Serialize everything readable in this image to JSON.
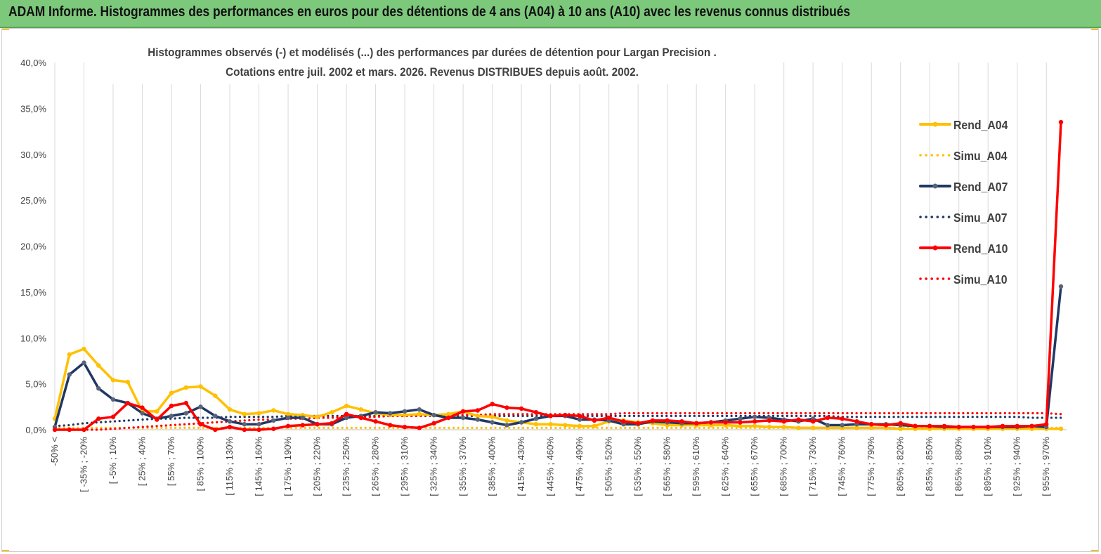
{
  "header": {
    "banner_title": "ADAM Informe. Histogrammes des performances en euros pour des détentions de 4 ans (A04) à 10 ans (A10) avec les revenus connus distribués"
  },
  "chart_data": {
    "type": "line",
    "title": "Histogrammes observés (-) et modélisés (...) des performances par durées de détention pour Largan Precision .",
    "subtitle": "Cotations entre juil. 2002 et mars. 2026. Revenus DISTRIBUES depuis août. 2002.",
    "ylim": [
      0,
      40
    ],
    "yticks": [
      "0,0%",
      "5,0%",
      "10,0%",
      "15,0%",
      "20,0%",
      "25,0%",
      "30,0%",
      "35,0%",
      "40,0%"
    ],
    "grid": "vertical",
    "legend_position": "right",
    "x_tick_labels": [
      "-50% <",
      "[ -35% ; -20%",
      "[ -5% ; 10%",
      "[ 25% ; 40%",
      "[ 55% ; 70%",
      "[ 85% ; 100%",
      "[ 115% ; 130%",
      "[ 145% ; 160%",
      "[ 175% ; 190%",
      "[ 205% ; 220%",
      "[ 235% ; 250%",
      "[ 265% ; 280%",
      "[ 295% ; 310%",
      "[ 325% ; 340%",
      "[ 355% ; 370%",
      "[ 385% ; 400%",
      "[ 415% ; 430%",
      "[ 445% ; 460%",
      "[ 475% ; 490%",
      "[ 505% ; 520%",
      "[ 535% ; 550%",
      "[ 565% ; 580%",
      "[ 595% ; 610%",
      "[ 625% ; 640%",
      "[ 655% ; 670%",
      "[ 685% ; 700%",
      "[ 715% ; 730%",
      "[ 745% ; 760%",
      "[ 775% ; 790%",
      "[ 805% ; 820%",
      "[ 835% ; 850%",
      "[ 865% ; 880%",
      "[ 895% ; 910%",
      "[ 925% ; 940%",
      "[ 955% ; 970%"
    ],
    "series": [
      {
        "name": "Rend_A04",
        "style": "solid",
        "markers": true,
        "color": "#FFC000",
        "values": [
          1.2,
          8.2,
          8.8,
          7.0,
          5.4,
          5.2,
          2.0,
          2.0,
          4.0,
          4.6,
          4.7,
          3.7,
          2.2,
          1.7,
          1.8,
          2.1,
          1.7,
          1.6,
          1.4,
          1.9,
          2.6,
          2.2,
          1.8,
          1.6,
          1.6,
          1.7,
          1.6,
          1.7,
          2.0,
          1.5,
          1.4,
          1.0,
          0.8,
          0.6,
          0.6,
          0.5,
          0.4,
          0.4,
          0.9,
          1.0,
          0.8,
          0.7,
          0.5,
          0.5,
          0.5,
          0.5,
          0.5,
          0.4,
          0.4,
          0.3,
          0.3,
          0.2,
          0.2,
          0.2,
          0.2,
          0.2,
          0.2,
          0.2,
          0.1,
          0.1,
          0.1,
          0.1,
          0.1,
          0.1,
          0.1,
          0.1,
          0.1,
          0.1,
          0.1,
          0.1
        ]
      },
      {
        "name": "Simu_A04",
        "style": "dotted",
        "markers": false,
        "color": "#FFC000",
        "values": [
          0.2,
          0.2,
          0.2,
          0.2,
          0.2,
          0.2,
          0.2,
          0.2,
          0.2,
          0.2,
          0.2,
          0.2,
          0.2,
          0.2,
          0.2,
          0.2,
          0.2,
          0.2,
          0.2,
          0.2,
          0.2,
          0.2,
          0.2,
          0.2,
          0.2,
          0.2,
          0.2,
          0.2,
          0.2,
          0.2,
          0.2,
          0.2,
          0.2,
          0.2,
          0.2,
          0.2,
          0.2,
          0.2,
          0.2,
          0.2,
          0.2,
          0.2,
          0.2,
          0.2,
          0.2,
          0.2,
          0.2,
          0.2,
          0.2,
          0.2,
          0.2,
          0.2,
          0.2,
          0.2,
          0.2,
          0.2,
          0.2,
          0.2,
          0.2,
          0.2,
          0.2,
          0.2,
          0.2,
          0.2,
          0.2,
          0.2,
          0.2,
          0.2,
          0.2,
          0.2
        ]
      },
      {
        "name": "Rend_A07",
        "style": "solid",
        "markers": true,
        "color": "#1F3864",
        "values": [
          0.3,
          6.0,
          7.3,
          4.5,
          3.3,
          2.9,
          1.8,
          1.2,
          1.5,
          1.8,
          2.5,
          1.5,
          0.9,
          0.6,
          0.6,
          1.0,
          1.3,
          1.3,
          0.6,
          0.6,
          1.3,
          1.5,
          1.9,
          1.8,
          2.0,
          2.2,
          1.6,
          1.3,
          1.3,
          1.1,
          0.8,
          0.5,
          0.8,
          1.2,
          1.5,
          1.5,
          1.1,
          1.1,
          1.0,
          0.6,
          0.6,
          0.9,
          0.8,
          0.7,
          0.7,
          0.8,
          1.0,
          1.2,
          1.4,
          1.3,
          1.1,
          0.9,
          1.2,
          0.5,
          0.5,
          0.6,
          0.6,
          0.6,
          0.5,
          0.4,
          0.4,
          0.3,
          0.3,
          0.3,
          0.3,
          0.3,
          0.3,
          0.4,
          0.3,
          15.6
        ]
      },
      {
        "name": "Simu_A07",
        "style": "dotted",
        "markers": false,
        "color": "#1F3864",
        "values": [
          0.4,
          0.5,
          0.7,
          0.8,
          0.9,
          1.0,
          1.1,
          1.2,
          1.2,
          1.3,
          1.3,
          1.3,
          1.4,
          1.4,
          1.4,
          1.4,
          1.5,
          1.5,
          1.5,
          1.5,
          1.5,
          1.5,
          1.5,
          1.5,
          1.5,
          1.5,
          1.5,
          1.5,
          1.5,
          1.5,
          1.5,
          1.5,
          1.5,
          1.5,
          1.5,
          1.5,
          1.5,
          1.5,
          1.5,
          1.5,
          1.5,
          1.5,
          1.5,
          1.5,
          1.5,
          1.5,
          1.5,
          1.5,
          1.5,
          1.5,
          1.5,
          1.5,
          1.5,
          1.5,
          1.4,
          1.4,
          1.4,
          1.4,
          1.4,
          1.4,
          1.4,
          1.4,
          1.4,
          1.4,
          1.4,
          1.4,
          1.4,
          1.3,
          1.3,
          1.3
        ]
      },
      {
        "name": "Rend_A10",
        "style": "solid",
        "markers": true,
        "color": "#FF0000",
        "values": [
          0.0,
          0.0,
          0.0,
          1.2,
          1.4,
          2.9,
          2.4,
          1.1,
          2.6,
          2.9,
          0.6,
          0.0,
          0.3,
          0.0,
          0.0,
          0.1,
          0.4,
          0.5,
          0.6,
          0.7,
          1.7,
          1.3,
          0.9,
          0.5,
          0.3,
          0.2,
          0.7,
          1.3,
          2.0,
          2.1,
          2.8,
          2.4,
          2.3,
          1.9,
          1.5,
          1.6,
          1.5,
          1.0,
          1.3,
          0.9,
          0.7,
          1.0,
          1.0,
          0.9,
          0.7,
          0.8,
          0.8,
          0.8,
          0.9,
          1.0,
          0.9,
          1.1,
          0.9,
          1.3,
          1.2,
          0.9,
          0.6,
          0.5,
          0.7,
          0.4,
          0.4,
          0.4,
          0.3,
          0.3,
          0.3,
          0.4,
          0.4,
          0.4,
          0.6,
          33.5
        ]
      },
      {
        "name": "Simu_A10",
        "style": "dotted",
        "markers": false,
        "color": "#FF0000",
        "values": [
          0.0,
          0.0,
          0.0,
          0.0,
          0.1,
          0.2,
          0.3,
          0.4,
          0.5,
          0.6,
          0.7,
          0.8,
          0.9,
          1.0,
          1.1,
          1.1,
          1.2,
          1.2,
          1.3,
          1.3,
          1.4,
          1.4,
          1.4,
          1.5,
          1.5,
          1.5,
          1.6,
          1.6,
          1.6,
          1.6,
          1.7,
          1.7,
          1.7,
          1.7,
          1.7,
          1.7,
          1.7,
          1.7,
          1.7,
          1.8,
          1.8,
          1.8,
          1.8,
          1.8,
          1.8,
          1.8,
          1.8,
          1.8,
          1.8,
          1.8,
          1.8,
          1.8,
          1.8,
          1.8,
          1.8,
          1.8,
          1.8,
          1.8,
          1.8,
          1.8,
          1.8,
          1.8,
          1.8,
          1.8,
          1.8,
          1.8,
          1.8,
          1.8,
          1.8,
          1.7
        ]
      }
    ]
  }
}
